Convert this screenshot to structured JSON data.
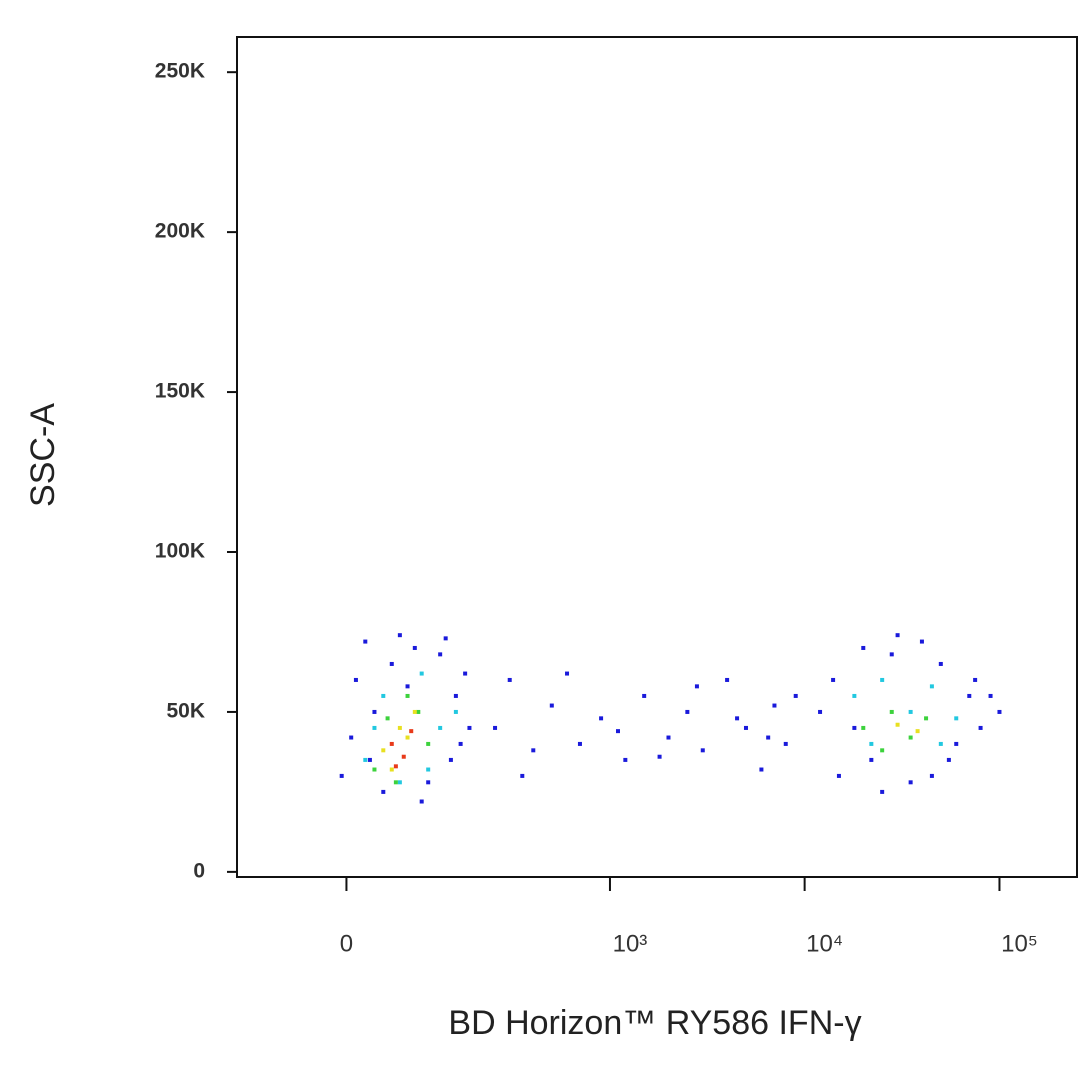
{
  "chart_data": {
    "type": "scatter",
    "x_label": "BD Horizon™ RY586 IFN-γ",
    "y_label": "SSC-A",
    "xscale": "biexponential",
    "xlim": [
      -150,
      250000
    ],
    "ylim": [
      -1600,
      261000
    ],
    "xticks": [
      0,
      {
        "value": 1000,
        "label": "10³"
      },
      {
        "value": 10000,
        "label": "10⁴"
      },
      {
        "value": 100000,
        "label": "10⁵"
      }
    ],
    "yticks": [
      0,
      {
        "value": 50000,
        "label": "50K"
      },
      {
        "value": 100000,
        "label": "100K"
      },
      {
        "value": 150000,
        "label": "150K"
      },
      {
        "value": 200000,
        "label": "200K"
      },
      {
        "value": 250000,
        "label": "250K"
      }
    ],
    "series": [
      {
        "color": "#1a1adb",
        "x": [
          -5,
          10,
          20,
          40,
          80,
          120,
          150,
          180,
          30,
          60,
          100,
          140,
          170,
          5,
          50,
          90,
          130,
          160,
          25,
          70,
          250,
          300,
          400,
          500,
          700,
          900,
          1200,
          1500,
          2000,
          2500,
          3000,
          4000,
          5000,
          6000,
          7000,
          8000,
          350,
          600,
          1100,
          1800,
          2800,
          4500,
          6500,
          9000,
          12000,
          15000,
          20000,
          25000,
          30000,
          40000,
          50000,
          60000,
          70000,
          80000,
          100000,
          14000,
          22000,
          35000,
          55000,
          75000,
          18000,
          45000,
          90000,
          28000
        ],
        "y": [
          30000,
          60000,
          72000,
          25000,
          70000,
          68000,
          55000,
          45000,
          50000,
          74000,
          28000,
          35000,
          62000,
          42000,
          65000,
          22000,
          73000,
          40000,
          35000,
          58000,
          45000,
          60000,
          38000,
          52000,
          40000,
          48000,
          35000,
          55000,
          42000,
          50000,
          38000,
          60000,
          45000,
          32000,
          52000,
          40000,
          30000,
          62000,
          44000,
          36000,
          58000,
          48000,
          42000,
          55000,
          50000,
          30000,
          70000,
          25000,
          74000,
          72000,
          65000,
          40000,
          55000,
          45000,
          50000,
          60000,
          35000,
          28000,
          35000,
          60000,
          45000,
          30000,
          55000,
          68000
        ]
      },
      {
        "color": "#22c8e0",
        "x": [
          20,
          40,
          60,
          90,
          120,
          150,
          30,
          100,
          18000,
          25000,
          35000,
          45000,
          60000,
          22000,
          50000
        ],
        "y": [
          35000,
          55000,
          28000,
          62000,
          45000,
          50000,
          45000,
          32000,
          55000,
          60000,
          50000,
          58000,
          48000,
          40000,
          40000
        ]
      },
      {
        "color": "#3cd23c",
        "x": [
          30,
          45,
          70,
          100,
          55,
          85,
          20000,
          28000,
          35000,
          42000,
          25000
        ],
        "y": [
          32000,
          48000,
          55000,
          40000,
          28000,
          50000,
          45000,
          50000,
          42000,
          48000,
          38000
        ]
      },
      {
        "color": "#e8e020",
        "x": [
          40,
          60,
          80,
          50,
          70,
          30000,
          38000
        ],
        "y": [
          38000,
          45000,
          50000,
          32000,
          42000,
          46000,
          44000
        ]
      },
      {
        "color": "#e83a1a",
        "x": [
          50,
          65,
          75,
          55
        ],
        "y": [
          40000,
          36000,
          44000,
          33000
        ]
      }
    ]
  }
}
